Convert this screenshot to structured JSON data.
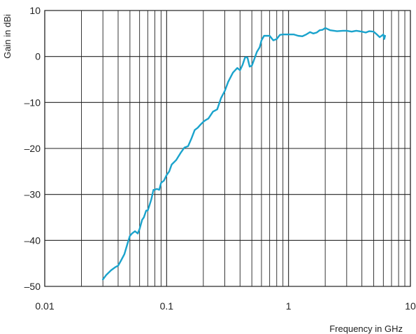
{
  "chart_data": {
    "type": "line",
    "xscale": "log",
    "xlim": [
      0.01,
      10
    ],
    "ylim": [
      -50,
      10
    ],
    "xlabel": "Frequency in GHz",
    "ylabel": "Gain in dBi",
    "grid": true,
    "xticks": [
      0.01,
      0.1,
      1,
      10
    ],
    "xtick_labels": [
      "0.01",
      "0.1",
      "1",
      "10"
    ],
    "yticks": [
      10,
      0,
      -10,
      -20,
      -30,
      -40,
      -50
    ],
    "ytick_labels": [
      "10",
      "0",
      "–10",
      "–20",
      "–30",
      "–40",
      "–50"
    ],
    "line_color": "#1aa3cc",
    "series": [
      {
        "x": [
          0.03,
          0.032,
          0.035,
          0.038,
          0.04,
          0.042,
          0.045,
          0.048,
          0.05,
          0.052,
          0.055,
          0.058,
          0.06,
          0.063,
          0.065,
          0.068,
          0.07,
          0.072,
          0.075,
          0.078,
          0.08,
          0.083,
          0.087,
          0.09,
          0.095,
          0.1,
          0.105,
          0.11,
          0.12,
          0.13,
          0.14,
          0.15,
          0.16,
          0.17,
          0.18,
          0.19,
          0.2,
          0.21,
          0.22,
          0.24,
          0.26,
          0.28,
          0.3,
          0.32,
          0.35,
          0.38,
          0.4,
          0.42,
          0.44,
          0.46,
          0.48,
          0.5,
          0.52,
          0.55,
          0.58,
          0.6,
          0.63,
          0.66,
          0.7,
          0.75,
          0.8,
          0.85,
          0.9,
          1.0,
          1.1,
          1.2,
          1.3,
          1.4,
          1.5,
          1.6,
          1.7,
          1.8,
          1.9,
          2.0,
          2.2,
          2.5,
          2.8,
          3.0,
          3.3,
          3.6,
          4.0,
          4.3,
          4.6,
          5.0,
          5.3,
          5.6,
          6.0,
          6.1,
          6.2
        ],
        "y": [
          -48.5,
          -47.5,
          -46.5,
          -45.8,
          -45.5,
          -44.5,
          -43,
          -40.5,
          -39,
          -38.5,
          -38,
          -38.5,
          -37.5,
          -35.5,
          -35,
          -33.5,
          -33.5,
          -32.5,
          -31,
          -29,
          -29,
          -28.8,
          -29,
          -27.5,
          -27,
          -25.8,
          -25,
          -23.5,
          -22.5,
          -21,
          -19.8,
          -19.5,
          -17.8,
          -16,
          -15.5,
          -14.8,
          -14.2,
          -13.8,
          -13.5,
          -12,
          -11.5,
          -9,
          -7.5,
          -5.5,
          -3.5,
          -2.5,
          -3,
          -1.8,
          -0.2,
          -0.2,
          -2.2,
          -2,
          -0.8,
          1,
          2,
          3.5,
          4.5,
          4.5,
          4.5,
          3.5,
          3.8,
          4.7,
          4.8,
          4.8,
          4.8,
          4.5,
          4.4,
          4.8,
          5.3,
          5,
          5.2,
          5.7,
          5.8,
          6.2,
          5.7,
          5.5,
          5.6,
          5.6,
          5.4,
          5.6,
          5.4,
          5.2,
          5.5,
          5.4,
          4.8,
          4.2,
          4.8,
          3.8,
          4.5
        ]
      }
    ]
  }
}
